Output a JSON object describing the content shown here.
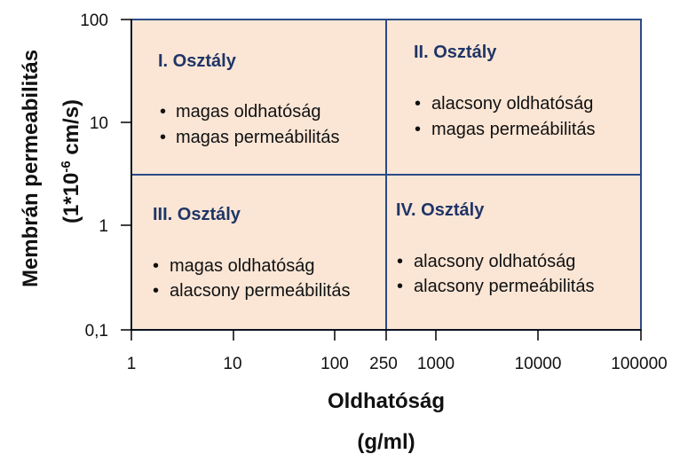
{
  "diagram": {
    "colors": {
      "fill": "#fbe6d6",
      "border": "#2b4a86",
      "title": "#1f3566",
      "text": "#111111"
    },
    "quadrants": [
      {
        "title": "I. Osztály",
        "bullets": [
          "magas oldhatóság",
          "magas permeábilitás"
        ]
      },
      {
        "title": "II. Osztály",
        "bullets": [
          "alacsony oldhatóság",
          "magas permeábilitás"
        ]
      },
      {
        "title": "III. Osztály",
        "bullets": [
          "magas oldhatóság",
          "alacsony permeábilitás"
        ]
      },
      {
        "title": "IV. Osztály",
        "bullets": [
          "alacsony oldhatóság",
          "alacsony permeábilitás"
        ]
      }
    ],
    "bullet_glyph": "•",
    "y_axis": {
      "title_line1": "Membrán permeabilitás",
      "title_line2_pre": "(1*10",
      "title_line2_sup": "-6",
      "title_line2_post": " cm/s)",
      "ticks": [
        {
          "value": 100,
          "label": "100"
        },
        {
          "value": 10,
          "label": "10"
        },
        {
          "value": 1,
          "label": "1"
        },
        {
          "value": 0.1,
          "label": "0,1"
        }
      ],
      "range": [
        0.1,
        100
      ],
      "boundary": 3
    },
    "x_axis": {
      "title_line1": "Oldhatóság",
      "title_line2": "(g/ml)",
      "ticks": [
        {
          "value": 1,
          "label": "1"
        },
        {
          "value": 10,
          "label": "10"
        },
        {
          "value": 100,
          "label": "100"
        },
        {
          "value": 250,
          "label": "250"
        },
        {
          "value": 1000,
          "label": "1000"
        },
        {
          "value": 10000,
          "label": "10000"
        },
        {
          "value": 100000,
          "label": "100000"
        }
      ],
      "range": [
        1,
        100000
      ],
      "boundary": 250
    }
  }
}
